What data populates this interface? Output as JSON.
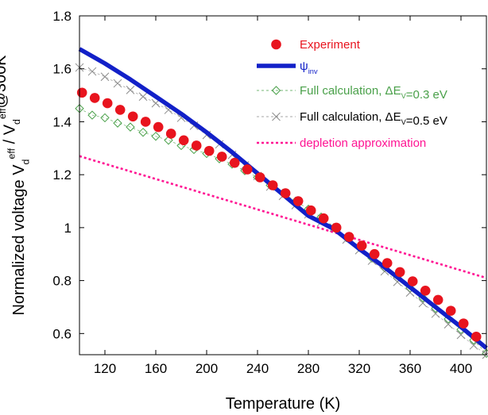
{
  "chart_data": {
    "type": "line",
    "xlabel": "Temperature (K)",
    "ylabel": {
      "parts": [
        {
          "t": "Normalized voltage V",
          "k": "n"
        },
        {
          "t": "d",
          "k": "sub"
        },
        {
          "t": "eff",
          "k": "sup"
        },
        {
          "t": " / V",
          "k": "n"
        },
        {
          "t": "d",
          "k": "sub"
        },
        {
          "t": "eff",
          "k": "sup"
        },
        {
          "t": "@300K",
          "k": "n"
        }
      ]
    },
    "xlim": [
      100,
      420
    ],
    "ylim": [
      0.52,
      1.8
    ],
    "xticks": [
      {
        "v": 120,
        "label": "120"
      },
      {
        "v": 160,
        "label": "160"
      },
      {
        "v": 200,
        "label": "200"
      },
      {
        "v": 240,
        "label": "240"
      },
      {
        "v": 280,
        "label": "280"
      },
      {
        "v": 320,
        "label": "320"
      },
      {
        "v": 360,
        "label": "360"
      },
      {
        "v": 400,
        "label": "400"
      }
    ],
    "yticks": [
      {
        "v": 0.6,
        "label": "0.6"
      },
      {
        "v": 0.8,
        "label": "0.8"
      },
      {
        "v": 1.0,
        "label": "1"
      },
      {
        "v": 1.2,
        "label": "1.2"
      },
      {
        "v": 1.4,
        "label": "1.4"
      },
      {
        "v": 1.6,
        "label": "1.6"
      },
      {
        "v": 1.8,
        "label": "1.8"
      }
    ],
    "legend_position": "top-right",
    "series": [
      {
        "key": "experiment",
        "style": "dots",
        "color": "#e8141e",
        "legend": [
          {
            "t": "Experiment",
            "k": "n"
          }
        ],
        "x": [
          102,
          112,
          122,
          132,
          142,
          152,
          162,
          172,
          182,
          192,
          202,
          212,
          222,
          232,
          242,
          252,
          262,
          272,
          282,
          292,
          302,
          312,
          322,
          332,
          342,
          352,
          362,
          372,
          382,
          392,
          402,
          412
        ],
        "y": [
          1.51,
          1.49,
          1.47,
          1.445,
          1.42,
          1.4,
          1.38,
          1.355,
          1.33,
          1.31,
          1.29,
          1.268,
          1.245,
          1.22,
          1.19,
          1.16,
          1.13,
          1.1,
          1.065,
          1.035,
          1.0,
          0.965,
          0.932,
          0.9,
          0.866,
          0.832,
          0.797,
          0.762,
          0.727,
          0.686,
          0.638,
          0.588
        ]
      },
      {
        "key": "psi",
        "style": "thick-line",
        "color": "#1220c8",
        "legend": [
          {
            "t": "ψ",
            "k": "n"
          },
          {
            "t": "inv",
            "k": "sub"
          }
        ],
        "x": [
          100,
          120,
          140,
          160,
          180,
          200,
          220,
          240,
          260,
          280,
          300,
          320,
          340,
          360,
          380,
          400,
          420
        ],
        "y": [
          1.675,
          1.62,
          1.56,
          1.495,
          1.43,
          1.36,
          1.285,
          1.205,
          1.125,
          1.045,
          0.995,
          0.92,
          0.85,
          0.775,
          0.7,
          0.625,
          0.545
        ]
      },
      {
        "key": "full03",
        "style": "diamond",
        "color": "#49a049",
        "legend": [
          {
            "t": "Full calculation, ΔE",
            "k": "n"
          },
          {
            "t": "V",
            "k": "sub"
          },
          {
            "t": "=0.3 eV",
            "k": "n"
          }
        ],
        "x": [
          100,
          110,
          120,
          130,
          140,
          150,
          160,
          170,
          180,
          190,
          200,
          210,
          220,
          230,
          240,
          250,
          260,
          270,
          280,
          290,
          300,
          310,
          320,
          330,
          340,
          350,
          360,
          370,
          380,
          390,
          400,
          410,
          420
        ],
        "y": [
          1.45,
          1.425,
          1.415,
          1.395,
          1.38,
          1.36,
          1.345,
          1.33,
          1.31,
          1.295,
          1.28,
          1.26,
          1.24,
          1.215,
          1.19,
          1.16,
          1.13,
          1.1,
          1.07,
          1.04,
          1.0,
          0.962,
          0.925,
          0.885,
          0.848,
          0.81,
          0.772,
          0.735,
          0.695,
          0.655,
          0.615,
          0.575,
          0.525
        ]
      },
      {
        "key": "full05",
        "style": "cross",
        "color": "#8a8a8a",
        "legend": [
          {
            "t": "Full calculation, ΔE",
            "k": "n"
          },
          {
            "t": "V",
            "k": "sub"
          },
          {
            "t": "=0.5 eV",
            "k": "n"
          }
        ],
        "x": [
          100,
          110,
          120,
          130,
          140,
          150,
          160,
          170,
          180,
          190,
          200,
          210,
          220,
          230,
          240,
          250,
          260,
          270,
          280,
          290,
          300,
          310,
          320,
          330,
          340,
          350,
          360,
          370,
          380,
          390,
          400,
          410,
          420
        ],
        "y": [
          1.605,
          1.59,
          1.57,
          1.545,
          1.52,
          1.495,
          1.47,
          1.445,
          1.415,
          1.385,
          1.35,
          1.315,
          1.275,
          1.235,
          1.195,
          1.155,
          1.12,
          1.085,
          1.05,
          1.02,
          1.0,
          0.955,
          0.915,
          0.875,
          0.835,
          0.795,
          0.755,
          0.715,
          0.675,
          0.635,
          0.595,
          0.555,
          0.52
        ]
      },
      {
        "key": "depletion",
        "style": "dotted-line",
        "color": "#ff1493",
        "legend": [
          {
            "t": "depletion approximation",
            "k": "n"
          }
        ],
        "x": [
          100,
          420
        ],
        "y": [
          1.27,
          0.81
        ]
      }
    ]
  }
}
